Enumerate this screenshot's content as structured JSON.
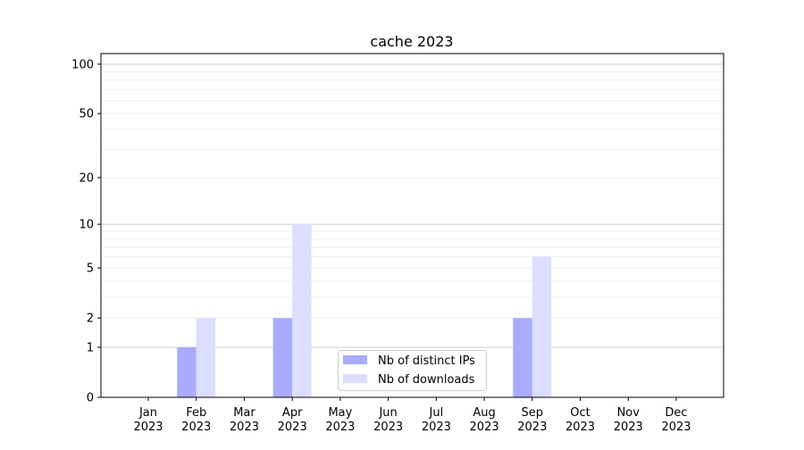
{
  "chart_data": {
    "type": "bar",
    "title": "cache 2023",
    "xlabel": "",
    "ylabel": "",
    "y_scale": "log(1+y)",
    "ylim": [
      0,
      116
    ],
    "yticks": [
      0,
      1,
      2,
      5,
      10,
      20,
      50,
      100
    ],
    "grid": "horizontal, major and minor",
    "legend_position": "lower center",
    "categories": [
      "Jan\n2023",
      "Feb\n2023",
      "Mar\n2023",
      "Apr\n2023",
      "May\n2023",
      "Jun\n2023",
      "Jul\n2023",
      "Aug\n2023",
      "Sep\n2023",
      "Oct\n2023",
      "Nov\n2023",
      "Dec\n2023"
    ],
    "series": [
      {
        "name": "Nb of distinct IPs",
        "color": "#aaaaff",
        "values": [
          0,
          1,
          0,
          2,
          0,
          0,
          0,
          0,
          2,
          0,
          0,
          0
        ]
      },
      {
        "name": "Nb of downloads",
        "color": "#ddddff",
        "values": [
          0,
          2,
          0,
          10,
          0,
          0,
          0,
          0,
          6,
          0,
          0,
          0
        ]
      }
    ]
  }
}
